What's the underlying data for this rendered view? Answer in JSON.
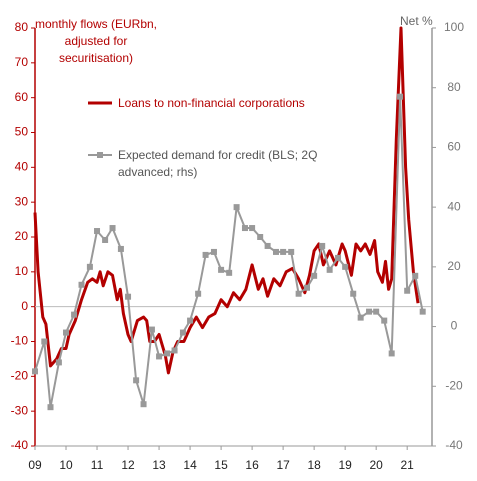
{
  "chart_data": {
    "type": "line",
    "ylabel": "monthly flows (EURbn, adjusted for securitisation)",
    "y2label": "Net %",
    "xlim": [
      2009,
      2021.8
    ],
    "xticks": [
      {
        "value": 2009,
        "label": "09"
      },
      {
        "value": 2010,
        "label": "10"
      },
      {
        "value": 2011,
        "label": "11"
      },
      {
        "value": 2012,
        "label": "12"
      },
      {
        "value": 2013,
        "label": "13"
      },
      {
        "value": 2014,
        "label": "14"
      },
      {
        "value": 2015,
        "label": "15"
      },
      {
        "value": 2016,
        "label": "16"
      },
      {
        "value": 2017,
        "label": "17"
      },
      {
        "value": 2018,
        "label": "18"
      },
      {
        "value": 2019,
        "label": "19"
      },
      {
        "value": 2020,
        "label": "20"
      },
      {
        "value": 2021,
        "label": "21"
      }
    ],
    "ylim": [
      -40,
      80
    ],
    "yticks": [
      -40,
      -30,
      -20,
      -10,
      0,
      10,
      20,
      30,
      40,
      50,
      60,
      70,
      80
    ],
    "y2lim": [
      -40,
      100
    ],
    "y2ticks": [
      -40,
      -20,
      0,
      20,
      40,
      60,
      80,
      100
    ],
    "series": [
      {
        "name": "Loans to non-financial corporations",
        "color": "#b30000",
        "x": [
          2009.0,
          2009.1,
          2009.25,
          2009.35,
          2009.5,
          2009.7,
          2009.85,
          2010.0,
          2010.1,
          2010.3,
          2010.5,
          2010.7,
          2010.85,
          2011.0,
          2011.1,
          2011.2,
          2011.35,
          2011.5,
          2011.65,
          2011.75,
          2011.85,
          2012.0,
          2012.1,
          2012.3,
          2012.5,
          2012.6,
          2012.7,
          2012.85,
          2013.0,
          2013.1,
          2013.2,
          2013.3,
          2013.45,
          2013.6,
          2013.8,
          2014.0,
          2014.2,
          2014.4,
          2014.6,
          2014.8,
          2015.0,
          2015.2,
          2015.4,
          2015.6,
          2015.8,
          2016.0,
          2016.2,
          2016.35,
          2016.5,
          2016.7,
          2016.9,
          2017.1,
          2017.3,
          2017.5,
          2017.7,
          2017.85,
          2018.0,
          2018.15,
          2018.3,
          2018.5,
          2018.7,
          2018.9,
          2019.0,
          2019.2,
          2019.35,
          2019.5,
          2019.65,
          2019.8,
          2019.95,
          2020.05,
          2020.2,
          2020.3,
          2020.4,
          2020.5,
          2020.65,
          2020.8,
          2020.95,
          2021.05,
          2021.2,
          2021.35
        ],
        "values": [
          27,
          10,
          -3,
          -5,
          -17,
          -15,
          -12,
          -12,
          -8,
          -4,
          2,
          7,
          8,
          7,
          10,
          6,
          10,
          9,
          2,
          5,
          -2,
          -8,
          -10,
          -4,
          -3,
          -4,
          -10,
          -10,
          -8,
          -11,
          -14,
          -19,
          -13,
          -10,
          -10,
          -6,
          -3,
          -6,
          -3,
          -2,
          2,
          0,
          4,
          2,
          5,
          12,
          5,
          8,
          3,
          8,
          6,
          10,
          11,
          8,
          4,
          9,
          16,
          18,
          12,
          16,
          12,
          18,
          16,
          9,
          18,
          16,
          18,
          15,
          19,
          10,
          7,
          13,
          5,
          8,
          48,
          80,
          40,
          25,
          10,
          1
        ]
      },
      {
        "name": "Expected demand for credit (BLS; 2Q advanced; rhs)",
        "color": "#999999",
        "axis": "y2",
        "x": [
          2009.0,
          2009.3,
          2009.5,
          2009.77,
          2010.0,
          2010.26,
          2010.5,
          2010.77,
          2011.0,
          2011.26,
          2011.5,
          2011.77,
          2012.0,
          2012.26,
          2012.5,
          2012.77,
          2013.0,
          2013.26,
          2013.5,
          2013.77,
          2014.0,
          2014.26,
          2014.5,
          2014.77,
          2015.0,
          2015.26,
          2015.5,
          2015.77,
          2016.0,
          2016.26,
          2016.5,
          2016.77,
          2017.0,
          2017.26,
          2017.5,
          2017.77,
          2018.0,
          2018.26,
          2018.5,
          2018.77,
          2019.0,
          2019.26,
          2019.5,
          2019.77,
          2020.0,
          2020.26,
          2020.5,
          2020.77,
          2021.0,
          2021.26,
          2021.5
        ],
        "values": [
          -15,
          -5,
          -27,
          -12,
          -2,
          4,
          14,
          20,
          32,
          29,
          33,
          26,
          10,
          -18,
          -26,
          -1,
          -10,
          -9,
          -8,
          -2,
          2,
          11,
          24,
          25,
          19,
          18,
          40,
          33,
          33,
          30,
          27,
          25,
          25,
          25,
          11,
          13,
          17,
          27,
          19,
          23,
          20,
          11,
          3,
          5,
          5,
          2,
          -9,
          77,
          12,
          17,
          5
        ]
      }
    ]
  }
}
